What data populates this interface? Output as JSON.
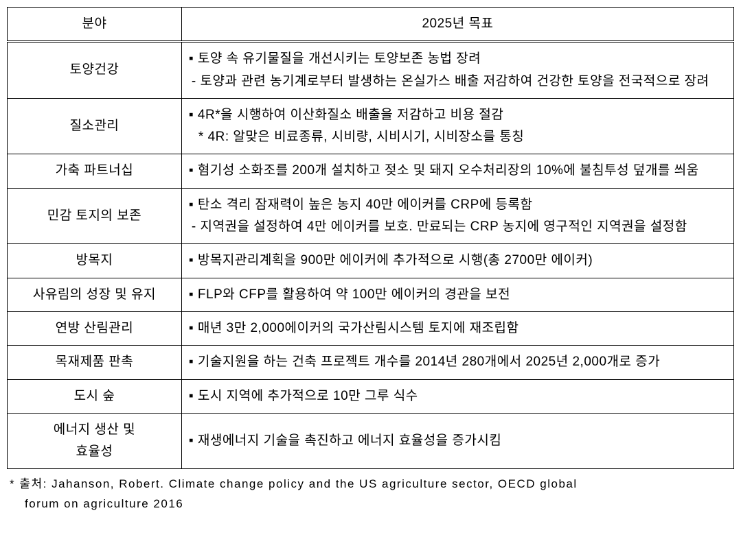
{
  "table": {
    "headers": {
      "col1": "분야",
      "col2": "2025년 목표"
    },
    "rows": [
      {
        "category": "토양건강",
        "content": "▪ 토양 속 유기물질을 개선시키는 토양보존 농법 장려\n- 토양과 관련 농기계로부터 발생하는 온실가스 배출 저감하여 건강한 토양을 전국적으로 장려"
      },
      {
        "category": "질소관리",
        "content": "▪ 4R*을 시행하여 이산화질소 배출을 저감하고 비용 절감\n  * 4R: 알맞은 비료종류, 시비량, 시비시기, 시비장소를 통칭"
      },
      {
        "category": "가축 파트너십",
        "content": "▪ 혐기성 소화조를 200개 설치하고 젖소 및 돼지 오수처리장의 10%에 불침투성 덮개를 씌움"
      },
      {
        "category": "민감 토지의 보존",
        "content": "▪ 탄소 격리 잠재력이 높은 농지 40만 에이커를 CRP에 등록함\n- 지역권을 설정하여 4만 에이커를 보호. 만료되는 CRP 농지에 영구적인 지역권을 설정함"
      },
      {
        "category": "방목지",
        "content": "▪ 방목지관리계획을 900만 에이커에 추가적으로 시행(총 2700만 에이커)"
      },
      {
        "category": "사유림의 성장 및 유지",
        "content": "▪ FLP와 CFP를 활용하여 약 100만 에이커의 경관을 보전"
      },
      {
        "category": "연방 산림관리",
        "content": "▪ 매년 3만 2,000에이커의 국가산림시스템 토지에 재조립함"
      },
      {
        "category": "목재제품 판촉",
        "content": "▪ 기술지원을 하는 건축 프로젝트 개수를 2014년 280개에서 2025년 2,000개로 증가"
      },
      {
        "category": "도시 숲",
        "content": "▪ 도시 지역에 추가적으로 10만 그루 식수"
      },
      {
        "category": "에너지 생산 및 효율성",
        "content": "▪ 재생에너지 기술을 촉진하고 에너지 효율성을 증가시킴"
      }
    ]
  },
  "source": {
    "line1": "* 출처: Jahanson, Robert. Climate change policy and the US agriculture sector,  OECD global",
    "line2": "forum on agriculture 2016"
  }
}
